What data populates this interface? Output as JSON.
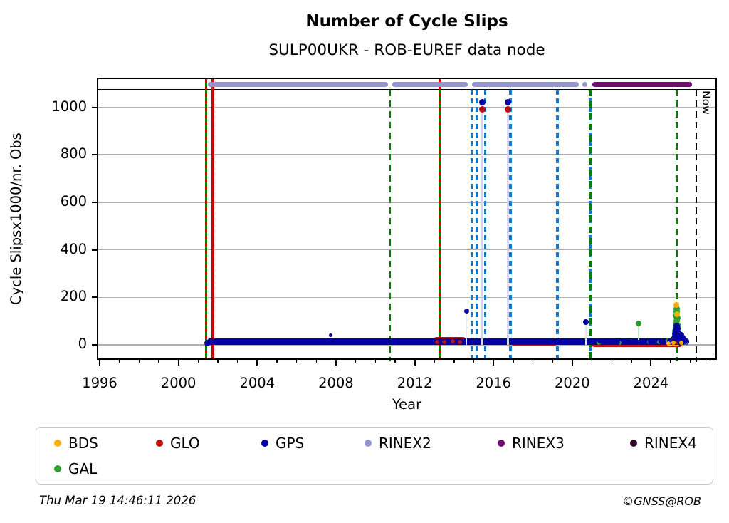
{
  "footer": {
    "timestamp": "Thu Mar 19 14:46:11 2026",
    "credit": "©GNSS@ROB"
  },
  "chart_data": {
    "type": "scatter",
    "title": "Number of Cycle Slips",
    "subtitle": "SULP00UKR - ROB-EUREF data node",
    "xlabel": "Year",
    "ylabel": "Cycle Slipsx1000/nr. Obs",
    "xlim": [
      1995.93,
      2027.27
    ],
    "ylim": [
      -57,
      1119
    ],
    "xticks": [
      1996,
      2000,
      2004,
      2008,
      2012,
      2016,
      2020,
      2024
    ],
    "yticks": [
      0,
      200,
      400,
      600,
      800,
      1000
    ],
    "grid": "horizontal",
    "now_label": "Now",
    "now_year": 2026.3,
    "colors": {
      "BDS": "#FFAE00",
      "GLO": "#BB1111",
      "GPS": "#0000A3",
      "RINEX2": "#9394D1",
      "RINEX3": "#730973",
      "RINEX4": "#2D082D",
      "GAL": "#2EA02E",
      "grid": "#AEAEAE",
      "event_red": "#D00000",
      "event_green": "#008000",
      "event_blue": "#1778C8",
      "event_black": "#000000",
      "stem_lavender": "#D4D4EC",
      "stem_lavender_faint": "#E6E6F3",
      "stem_green_faint": "#C6E6C6"
    },
    "legend": {
      "position": "below",
      "items": [
        {
          "name": "BDS",
          "color_key": "BDS"
        },
        {
          "name": "GLO",
          "color_key": "GLO"
        },
        {
          "name": "GPS",
          "color_key": "GPS"
        },
        {
          "name": "RINEX2",
          "color_key": "RINEX2"
        },
        {
          "name": "RINEX3",
          "color_key": "RINEX3"
        },
        {
          "name": "RINEX4",
          "color_key": "RINEX4"
        },
        {
          "name": "GAL",
          "color_key": "GAL"
        }
      ]
    },
    "rinex_bars": [
      {
        "name": "RINEX2",
        "color_key": "RINEX2",
        "segments": [
          [
            2001.5,
            2010.64
          ],
          [
            2010.86,
            2014.69
          ],
          [
            2014.91,
            2020.33
          ],
          [
            2020.51,
            2020.77
          ]
        ]
      },
      {
        "name": "RINEX3",
        "color_key": "RINEX3",
        "segments": [
          [
            2021.02,
            2026.08
          ]
        ]
      }
    ],
    "events": [
      {
        "year": 2001.42,
        "style": "green_red"
      },
      {
        "year": 2001.75,
        "style": "red_solid"
      },
      {
        "year": 2010.75,
        "style": "green_dashed"
      },
      {
        "year": 2013.25,
        "style": "green_red"
      },
      {
        "year": 2014.88,
        "style": "blue_dashed"
      },
      {
        "year": 2015.16,
        "style": "blue_dashed"
      },
      {
        "year": 2015.57,
        "style": "blue_dashed"
      },
      {
        "year": 2016.86,
        "style": "blue_dashed"
      },
      {
        "year": 2019.25,
        "style": "blue_dashed"
      },
      {
        "year": 2020.91,
        "style": "blue_dashed"
      },
      {
        "year": 2020.93,
        "style": "green_dashed_thick"
      },
      {
        "year": 2025.29,
        "style": "green_dashed"
      },
      {
        "year": 2026.3,
        "style": "black_dashed",
        "label": "Now"
      }
    ],
    "bands": [
      {
        "s": "GLO",
        "x0": 2012.95,
        "x1": 2014.6,
        "v0": 2,
        "v1": 34
      },
      {
        "s": "GLO",
        "x0": 2016.9,
        "x1": 2019.2,
        "v0": -4,
        "v1": 16
      },
      {
        "s": "GLO",
        "x0": 2020.98,
        "x1": 2025.6,
        "v0": -8,
        "v1": 18
      },
      {
        "s": "BDS",
        "x0": 2024.8,
        "x1": 2025.65,
        "v0": -6,
        "v1": 8
      },
      {
        "s": "GPS",
        "x0": 2001.47,
        "x1": 2025.95,
        "v0": -1,
        "v1": 28
      }
    ],
    "points": [
      {
        "s": "GPS",
        "x": 2001.47,
        "v": 6,
        "r": 9
      },
      {
        "s": "GPS",
        "x": 2007.72,
        "v": 40,
        "r": 5
      },
      {
        "s": "GPS",
        "x": 2014.63,
        "v": 142,
        "r": 7,
        "stem": "lavender_faint"
      },
      {
        "s": "GPS",
        "x": 2015.42,
        "v": 1022,
        "r": 9,
        "stem": "lavender"
      },
      {
        "s": "GLO",
        "x": 2015.42,
        "v": 992,
        "r": 9
      },
      {
        "s": "GPS",
        "x": 2016.72,
        "v": 1022,
        "r": 9,
        "stem": "lavender"
      },
      {
        "s": "GLO",
        "x": 2016.72,
        "v": 992,
        "r": 9
      },
      {
        "s": "GPS",
        "x": 2020.7,
        "v": 97,
        "r": 8,
        "stem": "lavender_faint"
      },
      {
        "s": "GAL",
        "x": 2023.37,
        "v": 91,
        "r": 8,
        "stem": "green_faint"
      },
      {
        "s": "GLO",
        "x": 2013.15,
        "v": 13,
        "r": 6
      },
      {
        "s": "GLO",
        "x": 2013.5,
        "v": 11,
        "r": 6
      },
      {
        "s": "GLO",
        "x": 2013.95,
        "v": 15,
        "r": 6
      },
      {
        "s": "GLO",
        "x": 2014.3,
        "v": 11,
        "r": 6
      },
      {
        "s": "GAL",
        "x": 2021.35,
        "v": 10,
        "r": 6
      },
      {
        "s": "GAL",
        "x": 2021.9,
        "v": 13,
        "r": 6
      },
      {
        "s": "GAL",
        "x": 2022.4,
        "v": 10,
        "r": 6
      },
      {
        "s": "GAL",
        "x": 2022.95,
        "v": 15,
        "r": 6
      },
      {
        "s": "GAL",
        "x": 2023.9,
        "v": 11,
        "r": 6
      },
      {
        "s": "GAL",
        "x": 2024.4,
        "v": 13,
        "r": 6
      },
      {
        "s": "GAL",
        "x": 2024.85,
        "v": 19,
        "r": 6
      },
      {
        "s": "GAL",
        "x": 2025.05,
        "v": 24,
        "r": 6
      },
      {
        "s": "GAL",
        "x": 2025.6,
        "v": 12,
        "r": 6
      },
      {
        "s": "GAL",
        "x": 2025.75,
        "v": 8,
        "r": 6
      },
      {
        "s": "GPS",
        "x": 2017.45,
        "v": 12,
        "r": 7
      },
      {
        "s": "GPS",
        "x": 2018.0,
        "v": 9,
        "r": 7
      },
      {
        "s": "GPS",
        "x": 2021.4,
        "v": 15,
        "r": 7
      },
      {
        "s": "GPS",
        "x": 2021.9,
        "v": 13,
        "r": 7
      },
      {
        "s": "GPS",
        "x": 2022.3,
        "v": 11,
        "r": 7
      },
      {
        "s": "GPS",
        "x": 2022.9,
        "v": 14,
        "r": 7
      },
      {
        "s": "GPS",
        "x": 2023.4,
        "v": 10,
        "r": 7
      },
      {
        "s": "GPS",
        "x": 2023.95,
        "v": 12,
        "r": 7
      },
      {
        "s": "GPS",
        "x": 2024.5,
        "v": 14,
        "r": 7
      },
      {
        "s": "GPS",
        "x": 2024.95,
        "v": 17,
        "r": 7
      },
      {
        "s": "GLO",
        "x": 2025.19,
        "v": 22,
        "r": 7
      },
      {
        "s": "GLO",
        "x": 2025.25,
        "v": 14,
        "r": 7
      },
      {
        "s": "GLO",
        "x": 2025.31,
        "v": 20,
        "r": 7
      },
      {
        "s": "GLO",
        "x": 2025.36,
        "v": 10,
        "r": 7
      },
      {
        "s": "GAL",
        "x": 2025.22,
        "v": 58,
        "r": 9
      },
      {
        "s": "GAL",
        "x": 2025.25,
        "v": 88,
        "r": 9
      },
      {
        "s": "GAL",
        "x": 2025.27,
        "v": 122,
        "r": 9
      },
      {
        "s": "GAL",
        "x": 2025.3,
        "v": 150,
        "r": 9
      },
      {
        "s": "GAL",
        "x": 2025.32,
        "v": 138,
        "r": 9
      },
      {
        "s": "GAL",
        "x": 2025.35,
        "v": 112,
        "r": 9
      },
      {
        "s": "GAL",
        "x": 2025.37,
        "v": 80,
        "r": 9
      },
      {
        "s": "GAL",
        "x": 2025.29,
        "v": 100,
        "r": 9
      },
      {
        "s": "GAL",
        "x": 2025.27,
        "v": 70,
        "r": 9
      },
      {
        "s": "GAL",
        "x": 2025.33,
        "v": 55,
        "r": 9
      },
      {
        "s": "GAL",
        "x": 2025.24,
        "v": 38,
        "r": 9
      },
      {
        "s": "GAL",
        "x": 2025.39,
        "v": 42,
        "r": 9
      },
      {
        "s": "GAL",
        "x": 2025.41,
        "v": 26,
        "r": 9
      },
      {
        "s": "GPS",
        "x": 2025.2,
        "v": 28,
        "r": 9
      },
      {
        "s": "GPS",
        "x": 2025.23,
        "v": 45,
        "r": 9
      },
      {
        "s": "GPS",
        "x": 2025.27,
        "v": 62,
        "r": 9
      },
      {
        "s": "GPS",
        "x": 2025.3,
        "v": 80,
        "r": 9
      },
      {
        "s": "GPS",
        "x": 2025.33,
        "v": 68,
        "r": 9
      },
      {
        "s": "GPS",
        "x": 2025.36,
        "v": 50,
        "r": 9
      },
      {
        "s": "GPS",
        "x": 2025.4,
        "v": 34,
        "r": 9
      },
      {
        "s": "GPS",
        "x": 2025.44,
        "v": 18,
        "r": 9
      },
      {
        "s": "GPS",
        "x": 2025.48,
        "v": 10,
        "r": 9
      },
      {
        "s": "GPS",
        "x": 2025.55,
        "v": 42,
        "r": 8
      },
      {
        "s": "GPS",
        "x": 2025.62,
        "v": 30,
        "r": 8
      },
      {
        "s": "GPS",
        "x": 2025.7,
        "v": 15,
        "r": 8
      },
      {
        "s": "BDS",
        "x": 2024.9,
        "v": 7,
        "r": 6
      },
      {
        "s": "BDS",
        "x": 2025.15,
        "v": 10,
        "r": 6
      },
      {
        "s": "BDS",
        "x": 2025.55,
        "v": 8,
        "r": 6
      },
      {
        "s": "BDS",
        "x": 2025.28,
        "v": 167,
        "r": 8
      },
      {
        "s": "BDS",
        "x": 2025.31,
        "v": 130,
        "r": 8
      }
    ]
  }
}
